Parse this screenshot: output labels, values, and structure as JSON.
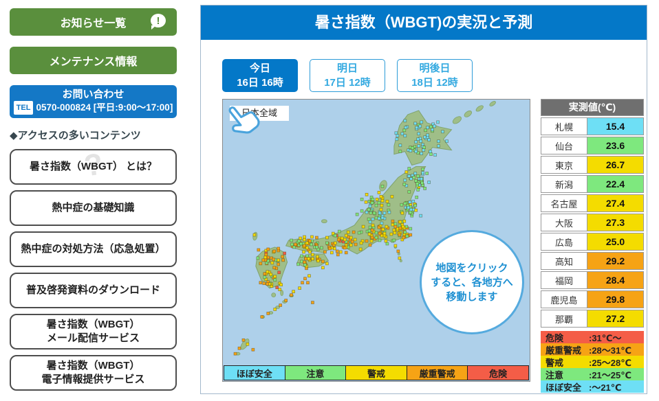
{
  "icons": {
    "alert_mark": "!"
  },
  "sidebar": {
    "notice_button": "お知らせ一覧",
    "maintenance_button": "メンテナンス情報",
    "contact": {
      "title": "お問い合わせ",
      "tel_label": "TEL",
      "tel_number": "0570-000824",
      "hours": "[平日:9:00～17:00]"
    },
    "popular_heading": "◆アクセスの多いコンテンツ",
    "links": [
      {
        "label": "暑さ指数（WBGT） とは？",
        "label2": "",
        "wm": "?"
      },
      {
        "label": "熱中症の基礎知識",
        "label2": "",
        "wm": ""
      },
      {
        "label": "熱中症の対処方法（応急処置）",
        "label2": "",
        "wm": ""
      },
      {
        "label": "普及啓発資料のダウンロード",
        "label2": "",
        "wm": ""
      },
      {
        "label": "暑さ指数（WBGT）",
        "label2": "メール配信サービス",
        "wm": ""
      },
      {
        "label": "暑さ指数（WBGT）",
        "label2": "電子情報提供サービス",
        "wm": ""
      }
    ]
  },
  "main": {
    "title": "暑さ指数（WBGT)の実況と予測",
    "tabs": [
      {
        "line1": "今日",
        "line2": "16日 16時",
        "active": true
      },
      {
        "line1": "明日",
        "line2": "17日 12時",
        "active": false
      },
      {
        "line1": "明後日",
        "line2": "18日 12時",
        "active": false
      }
    ],
    "map": {
      "region_label": "日本全域",
      "bubble_lines": [
        "地図をクリック",
        "すると、各地方へ",
        "移動します"
      ],
      "scale_labels": [
        "ほぼ安全",
        "注意",
        "警戒",
        "厳重警戒",
        "危険"
      ]
    },
    "table": {
      "header": "実測値(℃)",
      "rows": [
        {
          "city": "札幌",
          "value": "15.4"
        },
        {
          "city": "仙台",
          "value": "23.6"
        },
        {
          "city": "東京",
          "value": "26.7"
        },
        {
          "city": "新潟",
          "value": "22.4"
        },
        {
          "city": "名古屋",
          "value": "27.4"
        },
        {
          "city": "大阪",
          "value": "27.3"
        },
        {
          "city": "広島",
          "value": "25.0"
        },
        {
          "city": "高知",
          "value": "29.2"
        },
        {
          "city": "福岡",
          "value": "28.4"
        },
        {
          "city": "鹿児島",
          "value": "29.8"
        },
        {
          "city": "那覇",
          "value": "27.2"
        }
      ]
    },
    "legend": {
      "rows": [
        {
          "label": "危険",
          "range": ":31℃～",
          "level": "danger"
        },
        {
          "label": "厳重警戒",
          "range": ":28～31℃",
          "level": "severe"
        },
        {
          "label": "警戒",
          "range": ":25～28℃",
          "level": "warning"
        },
        {
          "label": "注意",
          "range": ":21～25℃",
          "level": "caution"
        },
        {
          "label": "ほぼ安全",
          "range": ":～21℃",
          "level": "safe"
        }
      ]
    },
    "colors": {
      "safe": "#6edff5",
      "caution": "#7ee87e",
      "warning": "#f4dc00",
      "severe": "#f6a315",
      "danger": "#f45d47",
      "header_blue": "#0478c8",
      "sidebar_green": "#5a8f3d",
      "contact_blue": "#1478c6"
    }
  }
}
